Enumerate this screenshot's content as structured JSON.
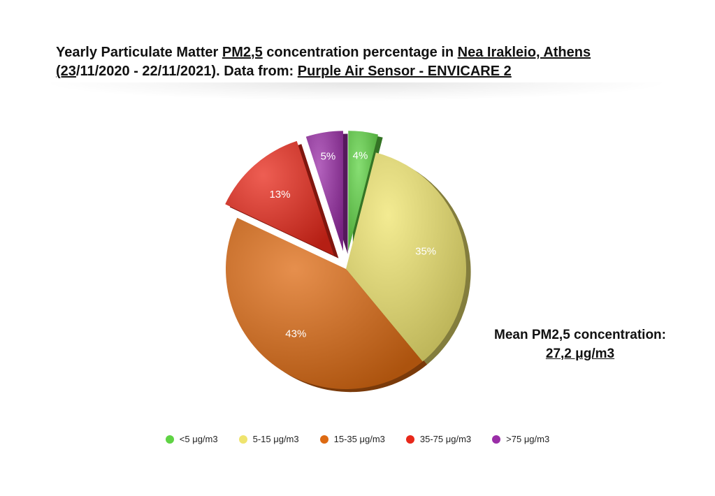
{
  "title": {
    "line1_part1": "Yearly Particulate Matter ",
    "line1_u1": "PM2,5",
    "line1_part2": " concentration percentage in ",
    "line1_u2": "Nea Irakleio, Athens",
    "line2_u1": "(23",
    "line2_part1": "/11/2020 - 22/11/2021). Data from: ",
    "line2_u2": "Purple Air Sensor - ENVICARE 2"
  },
  "mean": {
    "label": "Mean PM2,5 concentration:",
    "value": "27,2 μg/m3"
  },
  "chart_data": {
    "type": "pie",
    "categories": [
      "<5 μg/m3",
      "5-15 μg/m3",
      "15-35 μg/m3",
      "35-75 μg/m3",
      ">75 μg/m3"
    ],
    "values": [
      4,
      35,
      43,
      13,
      5
    ],
    "labels": [
      "4%",
      "35%",
      "43%",
      "13%",
      "5%"
    ],
    "colors": [
      "#5fd344",
      "#efe46e",
      "#dd6a12",
      "#e8281a",
      "#9a2ea7"
    ],
    "exploded": [
      true,
      false,
      false,
      true,
      true
    ],
    "legend_position": "bottom"
  }
}
